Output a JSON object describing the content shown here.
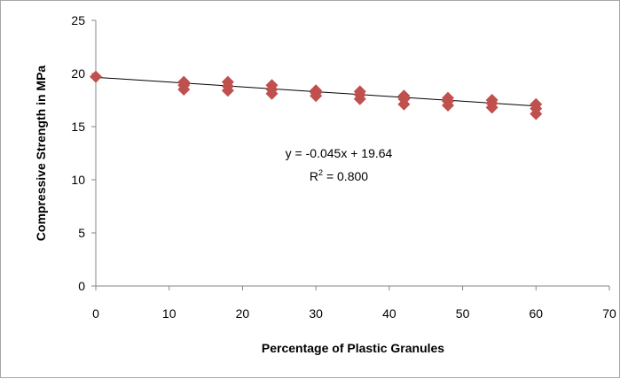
{
  "chart_data": {
    "type": "scatter",
    "xlabel": "Percentage of Plastic Granules",
    "ylabel": "Compressive Strength in MPa",
    "xlim": [
      0,
      70
    ],
    "ylim": [
      0,
      25
    ],
    "x_ticks": [
      "0",
      "10",
      "20",
      "30",
      "40",
      "50",
      "60",
      "70"
    ],
    "y_ticks": [
      "0",
      "5",
      "10",
      "15",
      "20",
      "25"
    ],
    "grid": false,
    "legend": "none",
    "marker": "diamond",
    "marker_color": "#c0504d",
    "trendline_color": "#000000",
    "points": [
      {
        "x": 0,
        "y": 19.7
      },
      {
        "x": 12,
        "y": 19.2
      },
      {
        "x": 12,
        "y": 18.9
      },
      {
        "x": 12,
        "y": 18.5
      },
      {
        "x": 18,
        "y": 19.2
      },
      {
        "x": 18,
        "y": 18.8
      },
      {
        "x": 18,
        "y": 18.4
      },
      {
        "x": 24,
        "y": 18.9
      },
      {
        "x": 24,
        "y": 18.5
      },
      {
        "x": 24,
        "y": 18.1
      },
      {
        "x": 30,
        "y": 18.4
      },
      {
        "x": 30,
        "y": 18.2
      },
      {
        "x": 30,
        "y": 17.9
      },
      {
        "x": 36,
        "y": 18.3
      },
      {
        "x": 36,
        "y": 18.0
      },
      {
        "x": 36,
        "y": 17.6
      },
      {
        "x": 42,
        "y": 17.9
      },
      {
        "x": 42,
        "y": 17.6
      },
      {
        "x": 42,
        "y": 17.1
      },
      {
        "x": 48,
        "y": 17.7
      },
      {
        "x": 48,
        "y": 17.4
      },
      {
        "x": 48,
        "y": 17.0
      },
      {
        "x": 54,
        "y": 17.5
      },
      {
        "x": 54,
        "y": 17.2
      },
      {
        "x": 54,
        "y": 16.8
      },
      {
        "x": 60,
        "y": 17.1
      },
      {
        "x": 60,
        "y": 16.7
      },
      {
        "x": 60,
        "y": 16.2
      }
    ],
    "trendline": {
      "slope": -0.045,
      "intercept": 19.64,
      "x_range": [
        0,
        60
      ]
    },
    "annotation": {
      "equation": "y = -0.045x + 19.64",
      "r_squared_prefix": "R",
      "r_squared_sup": "2",
      "r_squared_value": " = 0.800"
    }
  }
}
